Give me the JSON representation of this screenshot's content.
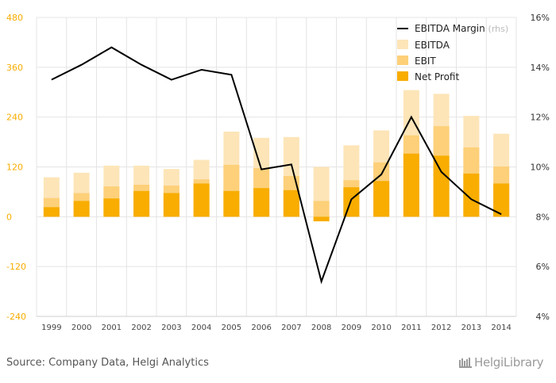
{
  "chart_data": {
    "type": "bar",
    "categories": [
      "1999",
      "2000",
      "2001",
      "2002",
      "2003",
      "2004",
      "2005",
      "2006",
      "2007",
      "2008",
      "2009",
      "2010",
      "2011",
      "2012",
      "2013",
      "2014"
    ],
    "series": [
      {
        "name": "EBITDA",
        "kind": "bar",
        "color": "#fde5b8",
        "values": [
          95,
          106,
          123,
          123,
          115,
          137,
          205,
          190,
          192,
          120,
          172,
          208,
          305,
          296,
          243,
          200
        ]
      },
      {
        "name": "EBIT",
        "kind": "bar",
        "color": "#fdd079",
        "values": [
          45,
          57,
          73,
          77,
          75,
          90,
          125,
          117,
          98,
          38,
          88,
          131,
          196,
          218,
          167,
          121
        ]
      },
      {
        "name": "Net Profit",
        "kind": "bar",
        "color": "#f8ad00",
        "values": [
          23,
          38,
          44,
          62,
          57,
          80,
          62,
          69,
          64,
          -11,
          71,
          86,
          152,
          147,
          104,
          80
        ]
      },
      {
        "name": "EBITDA Margin",
        "name_suffix": "(rhs)",
        "kind": "line",
        "axis": "right",
        "color": "#000000",
        "values": [
          13.5,
          14.1,
          14.8,
          14.1,
          13.5,
          13.9,
          13.7,
          9.9,
          10.1,
          5.4,
          8.7,
          9.7,
          12.0,
          9.8,
          8.7,
          8.1
        ]
      }
    ],
    "left_axis": {
      "min": -240,
      "max": 480,
      "ticks": [
        480,
        360,
        240,
        120,
        0,
        -120,
        -240
      ],
      "tick_color": "#f8ad00"
    },
    "right_axis": {
      "min": 4,
      "max": 16,
      "ticks": [
        "16%",
        "14%",
        "12%",
        "10%",
        "8%",
        "6%",
        "4%"
      ]
    },
    "grid": true,
    "legend_position": "top-right"
  },
  "footer": {
    "source": "Source: Company Data, Helgi Analytics",
    "logo": "HelgiLibrary"
  }
}
